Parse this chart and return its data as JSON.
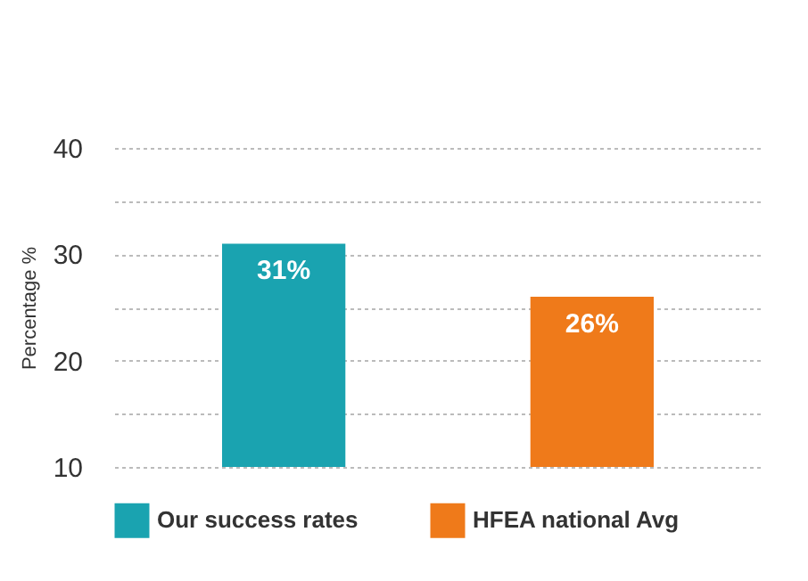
{
  "chart_data": {
    "type": "bar",
    "ylabel": "Percentage %",
    "categories": [
      null,
      null
    ],
    "series": [
      {
        "name": "Our success rates",
        "color": "#1aa3b0",
        "values": [
          31,
          null
        ],
        "value_labels": [
          "31%",
          null
        ]
      },
      {
        "name": "HFEA national Avg",
        "color": "#ef7a1a",
        "values": [
          null,
          26
        ],
        "value_labels": [
          null,
          "26%"
        ]
      }
    ],
    "ylim": [
      10,
      40
    ],
    "yticks": [
      10,
      {
        "value": 15,
        "label": null
      },
      20,
      {
        "value": 25,
        "label": null
      },
      30,
      {
        "value": 35,
        "label": null
      },
      40
    ],
    "grid": "y",
    "legend": "bottom"
  }
}
